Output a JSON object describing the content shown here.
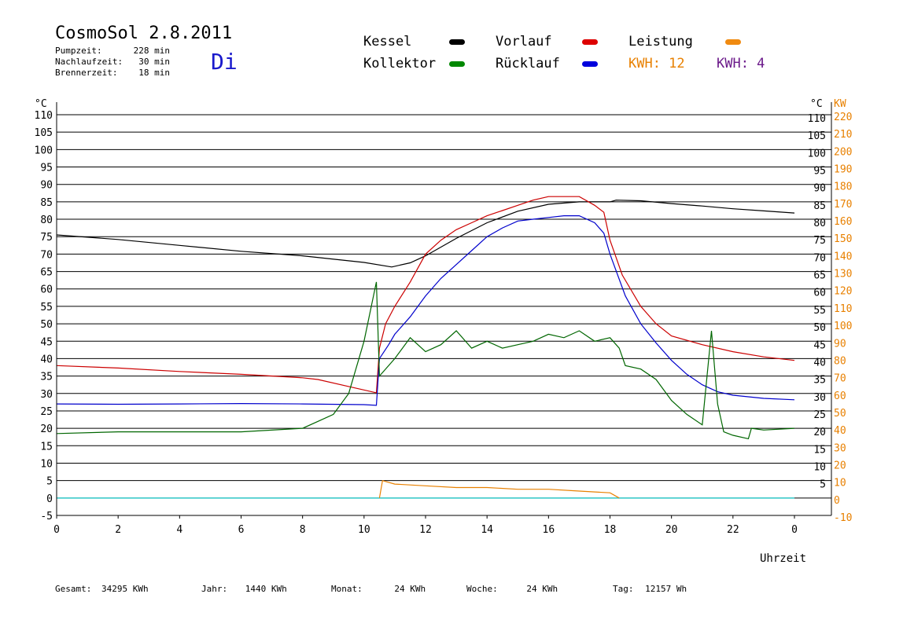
{
  "header": {
    "title": "CosmoSol 2.8.2011",
    "day": "Di",
    "pumpzeit_label": "Pumpzeit:",
    "pumpzeit_value": "228 min",
    "nachlaufzeit_label": "Nachlaufzeit:",
    "nachlaufzeit_value": "30 min",
    "brennerzeit_label": "Brennerzeit:",
    "brennerzeit_value": "18 min"
  },
  "legend": {
    "kessel": "Kessel",
    "vorlauf": "Vorlauf",
    "leistung": "Leistung",
    "kollektor": "Kollektor",
    "ruecklauf": "Rücklauf",
    "kwh1": "KWH: 12",
    "kwh2": "KWH: 4"
  },
  "colors": {
    "kessel": "#000000",
    "vorlauf": "#cc0000",
    "ruecklauf": "#0000cc",
    "kollektor": "#006600",
    "leistung": "#e88000",
    "kwh2": "#6b1a8a",
    "pump": "#33cccc",
    "day": "#1a1acc"
  },
  "footer": {
    "gesamt_label": "Gesamt:",
    "gesamt_value": "34295 KWh",
    "jahr_label": "Jahr:",
    "jahr_value": "1440 KWh",
    "monat_label": "Monat:",
    "monat_value": "24 KWh",
    "woche_label": "Woche:",
    "woche_value": "24 KWh",
    "tag_label": "Tag:",
    "tag_value": "12157 Wh"
  },
  "chart_data": {
    "type": "line",
    "xlabel": "Uhrzeit",
    "ylabel_left": "°C",
    "ylabel_right_temp": "°C",
    "ylabel_right_power": "KW",
    "xlim": [
      0,
      24
    ],
    "ylim": [
      -5,
      110
    ],
    "y2lim": [
      -10,
      220
    ],
    "grid": true,
    "x_ticks": [
      "0",
      "2",
      "4",
      "6",
      "8",
      "10",
      "12",
      "14",
      "16",
      "18",
      "20",
      "22",
      "0"
    ],
    "y_ticks_left": [
      -5,
      0,
      5,
      10,
      15,
      20,
      25,
      30,
      35,
      40,
      45,
      50,
      55,
      60,
      65,
      70,
      75,
      80,
      85,
      90,
      95,
      100,
      105,
      110
    ],
    "y_ticks_right": [
      5,
      10,
      15,
      20,
      25,
      30,
      35,
      40,
      45,
      50,
      55,
      60,
      65,
      70,
      75,
      80,
      85,
      90,
      95,
      100,
      105,
      110
    ],
    "y2_ticks": [
      -10,
      0,
      10,
      20,
      30,
      40,
      50,
      60,
      70,
      80,
      90,
      100,
      110,
      120,
      130,
      140,
      150,
      160,
      170,
      180,
      190,
      200,
      210,
      220
    ],
    "series": [
      {
        "name": "Kessel",
        "color": "#000000",
        "points": [
          [
            0,
            75.5
          ],
          [
            2,
            74.2
          ],
          [
            4,
            72.5
          ],
          [
            6,
            70.8
          ],
          [
            8,
            69.5
          ],
          [
            10,
            67.6
          ],
          [
            10.9,
            66.3
          ],
          [
            11.5,
            67.5
          ],
          [
            12,
            69.5
          ],
          [
            13,
            74.5
          ],
          [
            14,
            79
          ],
          [
            15,
            82.3
          ],
          [
            16,
            84.3
          ],
          [
            17,
            85
          ],
          [
            18,
            85
          ],
          [
            18.2,
            85.5
          ],
          [
            19,
            85.3
          ],
          [
            20,
            84.5
          ],
          [
            21,
            83.8
          ],
          [
            22,
            83
          ],
          [
            23,
            82.4
          ],
          [
            24,
            81.8
          ]
        ]
      },
      {
        "name": "Vorlauf",
        "color": "#cc0000",
        "points": [
          [
            0,
            38
          ],
          [
            2,
            37.3
          ],
          [
            4,
            36.3
          ],
          [
            6,
            35.5
          ],
          [
            8,
            34.5
          ],
          [
            8.5,
            34
          ],
          [
            9.5,
            32
          ],
          [
            10.4,
            30.2
          ],
          [
            10.5,
            43
          ],
          [
            10.7,
            50
          ],
          [
            11,
            55
          ],
          [
            11.5,
            62
          ],
          [
            12,
            70
          ],
          [
            12.5,
            74
          ],
          [
            13,
            77
          ],
          [
            13.5,
            79
          ],
          [
            14,
            81
          ],
          [
            14.5,
            82.5
          ],
          [
            15,
            84
          ],
          [
            15.5,
            85.5
          ],
          [
            16,
            86.5
          ],
          [
            16.5,
            86.5
          ],
          [
            17,
            86.5
          ],
          [
            17.5,
            84
          ],
          [
            17.8,
            82
          ],
          [
            18,
            74
          ],
          [
            18.4,
            64
          ],
          [
            19,
            55
          ],
          [
            19.5,
            50
          ],
          [
            20,
            46.5
          ],
          [
            21,
            44
          ],
          [
            22,
            42
          ],
          [
            23,
            40.5
          ],
          [
            24,
            39.5
          ]
        ]
      },
      {
        "name": "Rücklauf",
        "color": "#0000cc",
        "points": [
          [
            0,
            27
          ],
          [
            2,
            26.9
          ],
          [
            4,
            27
          ],
          [
            6,
            27.1
          ],
          [
            8,
            27
          ],
          [
            10,
            26.8
          ],
          [
            10.4,
            26.6
          ],
          [
            10.5,
            40
          ],
          [
            10.8,
            44
          ],
          [
            11,
            47
          ],
          [
            11.5,
            52
          ],
          [
            12,
            58
          ],
          [
            12.5,
            63
          ],
          [
            13,
            67
          ],
          [
            13.5,
            71
          ],
          [
            14,
            75
          ],
          [
            14.5,
            77.5
          ],
          [
            15,
            79.5
          ],
          [
            15.5,
            80
          ],
          [
            16,
            80.5
          ],
          [
            16.5,
            81
          ],
          [
            17,
            81
          ],
          [
            17.5,
            79
          ],
          [
            17.8,
            76
          ],
          [
            18,
            70
          ],
          [
            18.5,
            58
          ],
          [
            19,
            50
          ],
          [
            19.5,
            44.5
          ],
          [
            20,
            39.5
          ],
          [
            20.5,
            35.5
          ],
          [
            21,
            32.5
          ],
          [
            21.5,
            30.5
          ],
          [
            22,
            29.5
          ],
          [
            23,
            28.6
          ],
          [
            24,
            28.2
          ]
        ]
      },
      {
        "name": "Kollektor",
        "color": "#006600",
        "points": [
          [
            0,
            18.5
          ],
          [
            2,
            19
          ],
          [
            4,
            19
          ],
          [
            6,
            19
          ],
          [
            8,
            20
          ],
          [
            8.5,
            22
          ],
          [
            9,
            24
          ],
          [
            9.5,
            30
          ],
          [
            10,
            45
          ],
          [
            10.4,
            62
          ],
          [
            10.5,
            35
          ],
          [
            11,
            40
          ],
          [
            11.5,
            46
          ],
          [
            12,
            42
          ],
          [
            12.5,
            44
          ],
          [
            13,
            48
          ],
          [
            13.5,
            43
          ],
          [
            14,
            45
          ],
          [
            14.5,
            43
          ],
          [
            15,
            44
          ],
          [
            15.5,
            45
          ],
          [
            16,
            47
          ],
          [
            16.5,
            46
          ],
          [
            17,
            48
          ],
          [
            17.5,
            45
          ],
          [
            18,
            46
          ],
          [
            18.3,
            43
          ],
          [
            18.5,
            38
          ],
          [
            19,
            37
          ],
          [
            19.5,
            34
          ],
          [
            20,
            28
          ],
          [
            20.5,
            24
          ],
          [
            21,
            21
          ],
          [
            21.3,
            48
          ],
          [
            21.5,
            27
          ],
          [
            21.7,
            19
          ],
          [
            22,
            18
          ],
          [
            22.5,
            17
          ],
          [
            22.6,
            20
          ],
          [
            23,
            19.5
          ],
          [
            24,
            20
          ]
        ]
      },
      {
        "name": "Leistung",
        "color": "#e88000",
        "points": [
          [
            10.5,
            0
          ],
          [
            10.6,
            10
          ],
          [
            11,
            8
          ],
          [
            12,
            7
          ],
          [
            13,
            6
          ],
          [
            14,
            6
          ],
          [
            15,
            5
          ],
          [
            16,
            5
          ],
          [
            17,
            4
          ],
          [
            18,
            3
          ],
          [
            18.3,
            0
          ]
        ]
      }
    ],
    "pump_state": {
      "name": "Pumpe",
      "color": "#33cccc",
      "baseline": 0
    }
  }
}
